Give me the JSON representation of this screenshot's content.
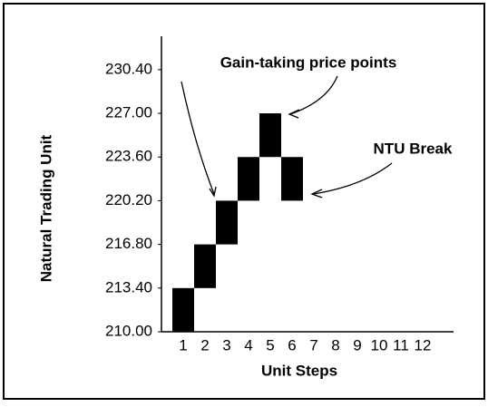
{
  "chart_data": {
    "type": "box-step",
    "xlabel": "Unit Steps",
    "ylabel": "Natural Trading Unit",
    "categories": [
      "1",
      "2",
      "3",
      "4",
      "5",
      "6",
      "7",
      "8",
      "9",
      "10",
      "11",
      "12"
    ],
    "low": [
      210.0,
      213.4,
      216.8,
      220.2,
      223.6,
      220.2,
      null,
      null,
      null,
      null,
      null,
      null
    ],
    "high": [
      213.4,
      216.8,
      220.2,
      223.6,
      227.0,
      223.6,
      null,
      null,
      null,
      null,
      null,
      null
    ],
    "color": "#000000",
    "ylim": [
      210,
      233
    ],
    "yticks": [
      {
        "value": 210,
        "label": "210.00"
      },
      {
        "value": 213.4,
        "label": "213.40"
      },
      {
        "value": 216.8,
        "label": "216.80"
      },
      {
        "value": 220.2,
        "label": "220.20"
      },
      {
        "value": 223.6,
        "label": "223.60"
      },
      {
        "value": 227,
        "label": "227.00"
      },
      {
        "value": 230.4,
        "label": "230.40"
      }
    ],
    "annotations": [
      "Gain-taking price points",
      "NTU Break"
    ]
  }
}
